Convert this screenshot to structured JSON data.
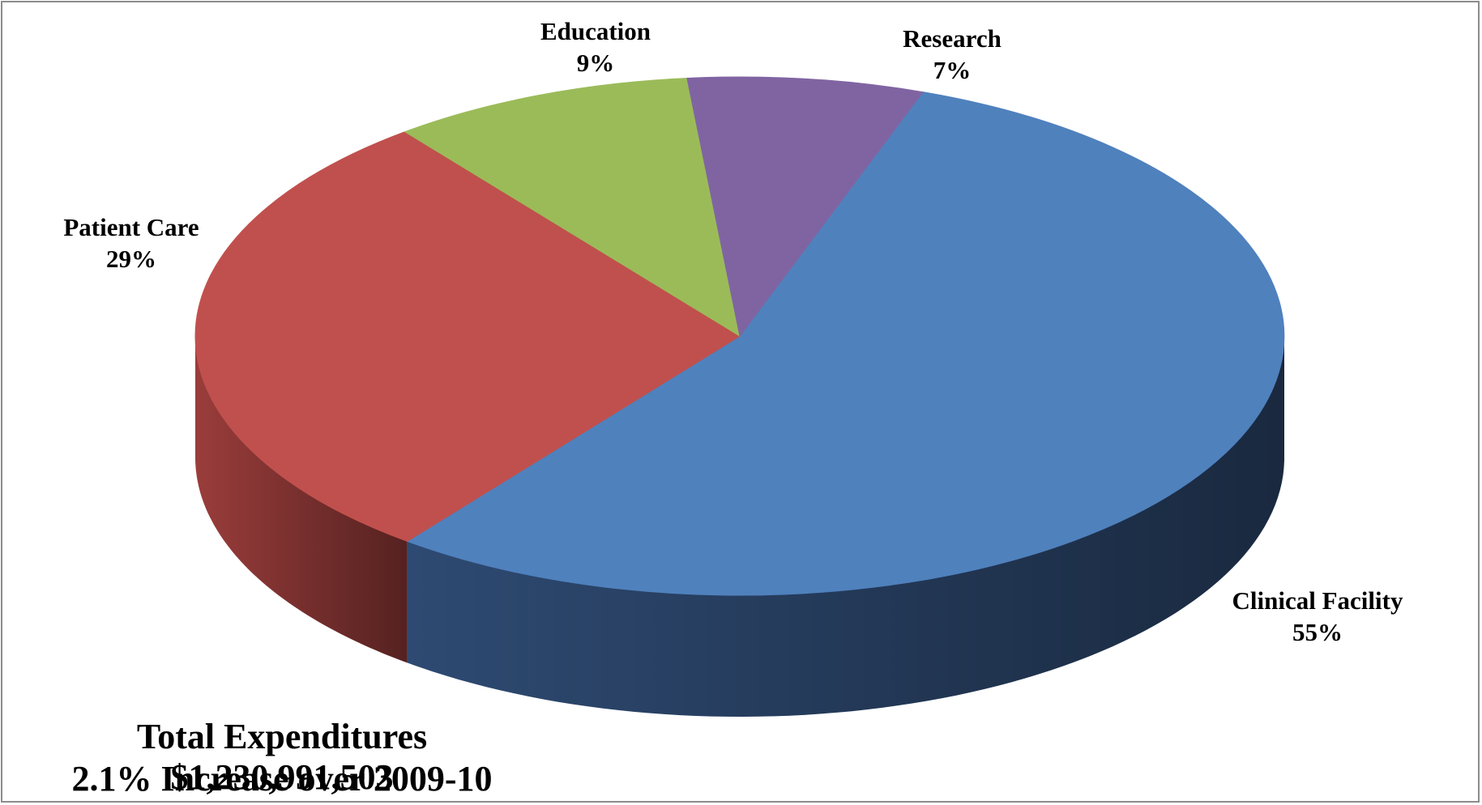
{
  "chart_data": {
    "type": "pie",
    "style": "3d",
    "categories": [
      "Clinical Facility",
      "Patient Care",
      "Education",
      "Research"
    ],
    "values": [
      55,
      29,
      9,
      7
    ],
    "value_labels": [
      "55%",
      "29%",
      "9%",
      "7%"
    ],
    "colors": [
      "#4f81bd",
      "#c0504d",
      "#9bbb59",
      "#8064a2"
    ],
    "side_colors": [
      "#2e4a72",
      "#9a3d3b",
      "#7a9446",
      "#5f4a7c"
    ],
    "legend": "none",
    "annotations": [
      "Total Expenditures $1,230,991,503",
      "2.1% Increase over 2009-10"
    ]
  },
  "labels": {
    "clinical_name": "Clinical Facility",
    "clinical_pct": "55%",
    "patient_name": "Patient Care",
    "patient_pct": "29%",
    "education_name": "Education",
    "education_pct": "9%",
    "research_name": "Research",
    "research_pct": "7%"
  },
  "caption": {
    "total": "Total Expenditures $1,230,991,503",
    "increase": "2.1% Increase over 2009-10"
  }
}
